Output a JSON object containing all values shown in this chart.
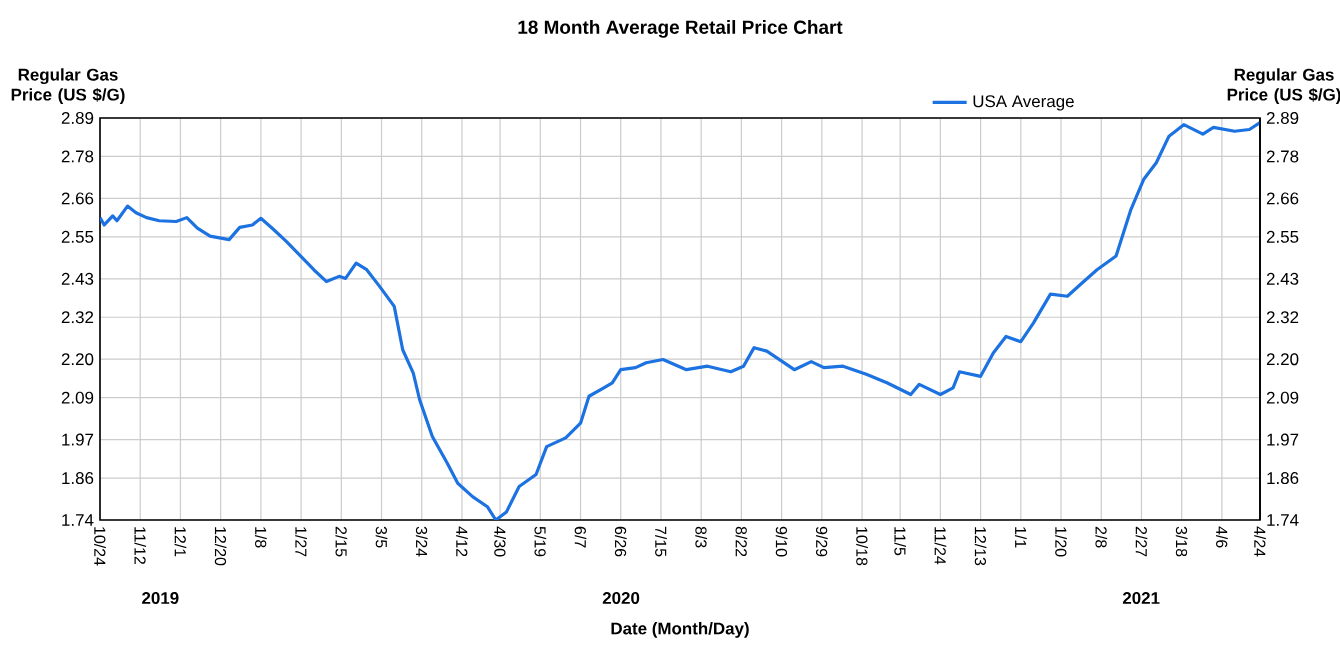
{
  "chart_data": {
    "type": "line",
    "title": "18 Month Average Retail Price Chart",
    "xlabel": "Date (Month/Day)",
    "ylabel": "Regular Gas Price (US $/G)",
    "y2label": "Regular Gas Price (US $/G)",
    "x": [
      "2019-10-24",
      "2019-10-26",
      "2019-10-30",
      "2019-11-01",
      "2019-11-06",
      "2019-11-10",
      "2019-11-15",
      "2019-11-21",
      "2019-11-29",
      "2019-12-04",
      "2019-12-09",
      "2019-12-15",
      "2019-12-24",
      "2019-12-29",
      "2020-01-04",
      "2020-01-08",
      "2020-01-14",
      "2020-01-20",
      "2020-01-26",
      "2020-02-02",
      "2020-02-08",
      "2020-02-14",
      "2020-02-17",
      "2020-02-22",
      "2020-02-27",
      "2020-03-04",
      "2020-03-11",
      "2020-03-15",
      "2020-03-20",
      "2020-03-23",
      "2020-03-29",
      "2020-04-05",
      "2020-04-10",
      "2020-04-17",
      "2020-04-24",
      "2020-04-28",
      "2020-05-03",
      "2020-05-09",
      "2020-05-17",
      "2020-05-22",
      "2020-05-31",
      "2020-06-07",
      "2020-06-11",
      "2020-06-18",
      "2020-06-22",
      "2020-06-26",
      "2020-07-03",
      "2020-07-08",
      "2020-07-16",
      "2020-07-27",
      "2020-08-06",
      "2020-08-17",
      "2020-08-23",
      "2020-08-28",
      "2020-09-03",
      "2020-09-09",
      "2020-09-16",
      "2020-09-24",
      "2020-09-30",
      "2020-10-09",
      "2020-10-20",
      "2020-10-30",
      "2020-11-10",
      "2020-11-14",
      "2020-11-24",
      "2020-11-30",
      "2020-12-03",
      "2020-12-13",
      "2020-12-19",
      "2020-12-25",
      "2021-01-01",
      "2021-01-07",
      "2021-01-15",
      "2021-01-23",
      "2021-01-29",
      "2021-02-06",
      "2021-02-15",
      "2021-02-22",
      "2021-02-28",
      "2021-03-06",
      "2021-03-12",
      "2021-03-19",
      "2021-03-28",
      "2021-04-02",
      "2021-04-12",
      "2021-04-19",
      "2021-04-24"
    ],
    "series": [
      {
        "name": "USA Average",
        "color": "#1c72e0",
        "values": [
          2.605,
          2.584,
          2.61,
          2.596,
          2.638,
          2.619,
          2.605,
          2.596,
          2.594,
          2.605,
          2.575,
          2.552,
          2.542,
          2.577,
          2.584,
          2.603,
          2.571,
          2.537,
          2.5,
          2.456,
          2.422,
          2.437,
          2.431,
          2.475,
          2.456,
          2.409,
          2.351,
          2.227,
          2.16,
          2.084,
          1.979,
          1.903,
          1.845,
          1.807,
          1.778,
          1.74,
          1.763,
          1.836,
          1.87,
          1.95,
          1.975,
          2.017,
          2.094,
          2.118,
          2.132,
          2.17,
          2.176,
          2.19,
          2.199,
          2.17,
          2.18,
          2.164,
          2.18,
          2.233,
          2.223,
          2.199,
          2.17,
          2.193,
          2.176,
          2.18,
          2.157,
          2.132,
          2.099,
          2.128,
          2.099,
          2.118,
          2.164,
          2.151,
          2.218,
          2.265,
          2.25,
          2.304,
          2.386,
          2.38,
          2.413,
          2.456,
          2.495,
          2.628,
          2.714,
          2.762,
          2.838,
          2.871,
          2.844,
          2.863,
          2.852,
          2.857,
          2.877
        ]
      }
    ],
    "xlim": [
      "2019-10-24",
      "2021-04-24"
    ],
    "xticks": [
      {
        "value": "2019-10-24",
        "label": "10/24"
      },
      {
        "value": "2019-11-12",
        "label": "11/12"
      },
      {
        "value": "2019-12-01",
        "label": "12/1"
      },
      {
        "value": "2019-12-20",
        "label": "12/20"
      },
      {
        "value": "2020-01-08",
        "label": "1/8"
      },
      {
        "value": "2020-01-27",
        "label": "1/27"
      },
      {
        "value": "2020-02-15",
        "label": "2/15"
      },
      {
        "value": "2020-03-05",
        "label": "3/5"
      },
      {
        "value": "2020-03-24",
        "label": "3/24"
      },
      {
        "value": "2020-04-12",
        "label": "4/12"
      },
      {
        "value": "2020-04-30",
        "label": "4/30"
      },
      {
        "value": "2020-05-19",
        "label": "5/19"
      },
      {
        "value": "2020-06-07",
        "label": "6/7"
      },
      {
        "value": "2020-06-26",
        "label": "6/26"
      },
      {
        "value": "2020-07-15",
        "label": "7/15"
      },
      {
        "value": "2020-08-03",
        "label": "8/3"
      },
      {
        "value": "2020-08-22",
        "label": "8/22"
      },
      {
        "value": "2020-09-10",
        "label": "9/10"
      },
      {
        "value": "2020-09-29",
        "label": "9/29"
      },
      {
        "value": "2020-10-18",
        "label": "10/18"
      },
      {
        "value": "2020-11-05",
        "label": "11/5"
      },
      {
        "value": "2020-11-24",
        "label": "11/24"
      },
      {
        "value": "2020-12-13",
        "label": "12/13"
      },
      {
        "value": "2021-01-01",
        "label": "1/1"
      },
      {
        "value": "2021-01-20",
        "label": "1/20"
      },
      {
        "value": "2021-02-08",
        "label": "2/8"
      },
      {
        "value": "2021-02-27",
        "label": "2/27"
      },
      {
        "value": "2021-03-18",
        "label": "3/18"
      },
      {
        "value": "2021-04-06",
        "label": "4/6"
      },
      {
        "value": "2021-04-24",
        "label": "4/24"
      }
    ],
    "ylim": [
      1.74,
      2.89
    ],
    "yticks": [
      1.74,
      1.86,
      1.97,
      2.09,
      {
        "value": 2.2,
        "label": "2.20"
      },
      2.32,
      2.43,
      2.55,
      2.66,
      2.78,
      2.89
    ],
    "y2lim": [
      1.74,
      2.89
    ],
    "y2ticks": [
      1.74,
      1.86,
      1.97,
      2.09,
      {
        "value": 2.2,
        "label": "2.20"
      },
      2.32,
      2.43,
      2.55,
      2.66,
      2.78,
      2.89
    ],
    "annotations": [
      "2019",
      "2020",
      "2021"
    ],
    "grid": true,
    "legend": "top",
    "line_style": "solid",
    "marker": "none"
  }
}
